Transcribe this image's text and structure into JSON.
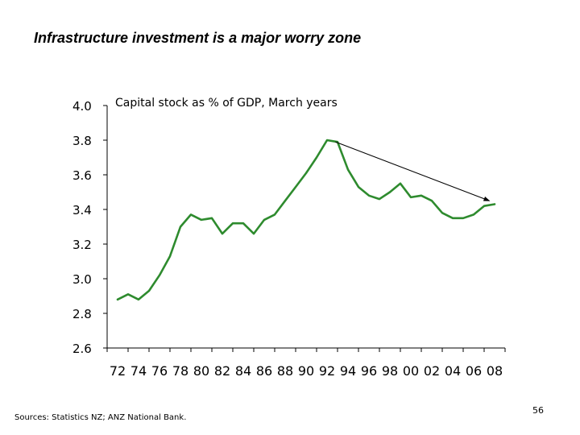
{
  "title": "Infrastructure investment is a major worry zone",
  "source": "Sources:  Statistics NZ; ANZ National Bank.",
  "page_number": "56",
  "chart_data": {
    "type": "line",
    "title": "",
    "subtitle": "Capital stock as % of GDP, March years",
    "xlabel": "",
    "ylabel": "",
    "x_tick_labels": [
      "72",
      "74",
      "76",
      "78",
      "80",
      "82",
      "84",
      "86",
      "88",
      "90",
      "92",
      "94",
      "96",
      "98",
      "00",
      "02",
      "04",
      "06",
      "08"
    ],
    "y_tick_labels": [
      "4.0",
      "3.8",
      "3.6",
      "3.4",
      "3.2",
      "3.0",
      "2.8",
      "2.6"
    ],
    "ylim": [
      2.6,
      4.0
    ],
    "xlim": [
      1971,
      2008.5
    ],
    "grid": false,
    "legend": "none",
    "series": [
      {
        "color": "#2e8b2e",
        "x": [
          1972,
          1973,
          1974,
          1975,
          1976,
          1977,
          1978,
          1979,
          1980,
          1981,
          1982,
          1983,
          1984,
          1985,
          1986,
          1987,
          1988,
          1989,
          1990,
          1991,
          1992,
          1993,
          1994,
          1995,
          1996,
          1997,
          1998,
          1999,
          2000,
          2001,
          2002,
          2003,
          2004,
          2005,
          2006,
          2007,
          2008
        ],
        "values": [
          2.88,
          2.91,
          2.88,
          2.93,
          3.02,
          3.13,
          3.3,
          3.37,
          3.34,
          3.35,
          3.26,
          3.32,
          3.32,
          3.26,
          3.34,
          3.37,
          3.45,
          3.53,
          3.61,
          3.7,
          3.8,
          3.79,
          3.63,
          3.53,
          3.48,
          3.46,
          3.5,
          3.55,
          3.47,
          3.48,
          3.45,
          3.38,
          3.35,
          3.35,
          3.37,
          3.42,
          3.43
        ]
      }
    ],
    "annotations": [
      {
        "type": "arrow",
        "from": [
          1992.8,
          3.79
        ],
        "to": [
          2007.5,
          3.45
        ]
      }
    ]
  }
}
